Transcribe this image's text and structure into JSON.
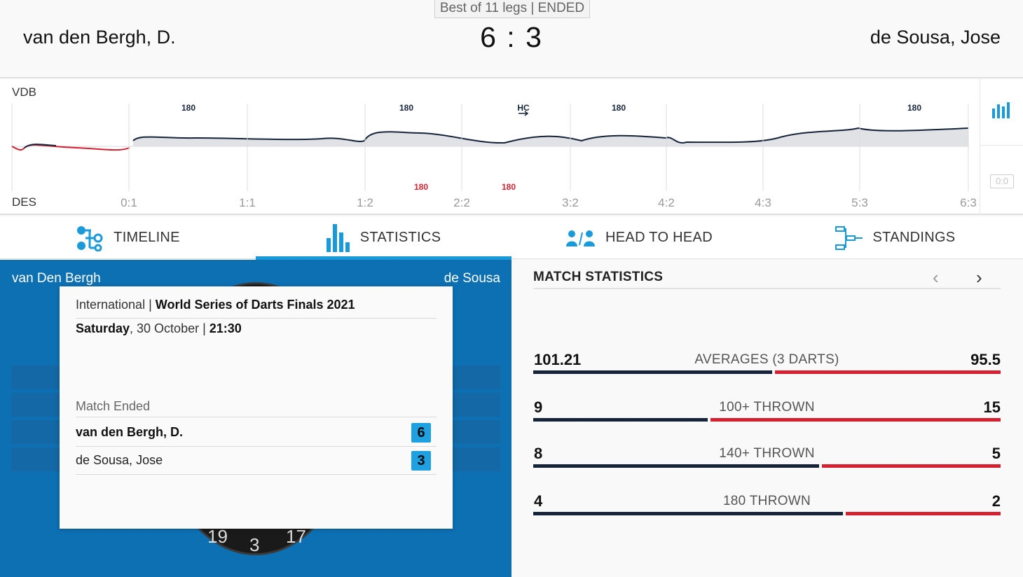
{
  "header": {
    "badge": "Best of 11 legs | ENDED",
    "home_player": "van den Bergh, D.",
    "away_player": "de Sousa, Jose",
    "score_home": "6",
    "score_sep": ":",
    "score_away": "3"
  },
  "momentum": {
    "top_label": "VDB",
    "bottom_label": "DES",
    "leg_scores": [
      "0:1",
      "1:1",
      "1:2",
      "2:2",
      "3:2",
      "4:2",
      "4:3",
      "5:3",
      "6:3"
    ],
    "home_markers": [
      "180",
      "180",
      "HC",
      "180",
      "180"
    ],
    "away_markers": [
      "180",
      "180"
    ],
    "counter": "0:0",
    "colors": {
      "home": "#15243a",
      "away": "#d7202f",
      "fill": "#e1e2e6"
    }
  },
  "tabs": [
    {
      "label": "TIMELINE",
      "icon": "timeline-icon"
    },
    {
      "label": "STATISTICS",
      "icon": "statistics-icon"
    },
    {
      "label": "HEAD TO HEAD",
      "icon": "head-to-head-icon"
    },
    {
      "label": "STANDINGS",
      "icon": "standings-icon"
    }
  ],
  "left_panel": {
    "home_name": "van Den Bergh",
    "away_name": "de Sousa",
    "board_numbers": [
      "19",
      "3",
      "17"
    ]
  },
  "card": {
    "category": "International",
    "separator": "|",
    "tournament": "World Series of Darts Finals 2021",
    "day": "Saturday",
    "date": ", 30 October | ",
    "time": "21:30",
    "status": "Match Ended",
    "home_name": "van den Bergh, D.",
    "home_score": "6",
    "away_name": "de Sousa, Jose",
    "away_score": "3"
  },
  "match_stats": {
    "title": "MATCH STATISTICS",
    "prev": "‹",
    "next": "›",
    "rows": [
      {
        "label": "AVERAGES (3 DARTS)",
        "home": "101.21",
        "away": "95.5",
        "home_value": 101.21,
        "away_value": 95.5
      },
      {
        "label": "100+ THROWN",
        "home": "9",
        "away": "15",
        "home_value": 9,
        "away_value": 15
      },
      {
        "label": "140+ THROWN",
        "home": "8",
        "away": "5",
        "home_value": 8,
        "away_value": 5
      },
      {
        "label": "180 THROWN",
        "home": "4",
        "away": "2",
        "home_value": 4,
        "away_value": 2
      }
    ]
  }
}
